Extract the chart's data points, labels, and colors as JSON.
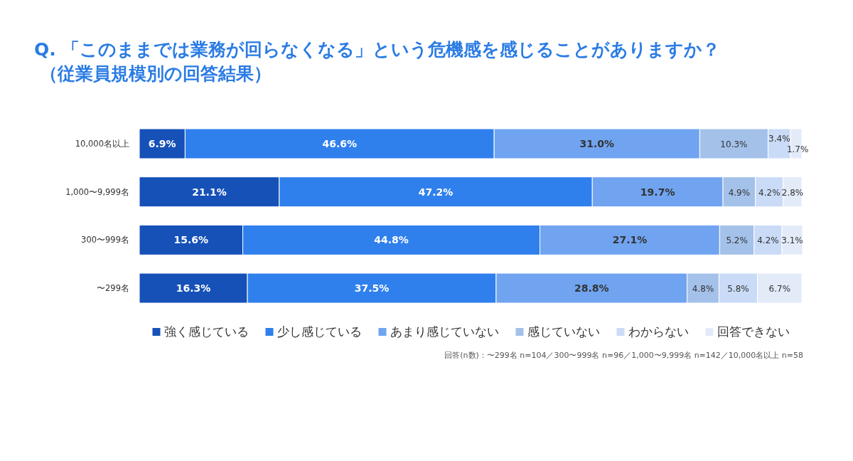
{
  "chart_data": {
    "type": "bar",
    "orientation": "horizontal",
    "stacked": true,
    "legend": "bottom",
    "title": "Q. 「このままでは業務が回らなくなる」という危機感を感じることがありますか？",
    "subtitle": "（従業員規模別の回答結果）",
    "categories": [
      "10,000名以上",
      "1,000〜9,999名",
      "300〜999名",
      "〜299名"
    ],
    "series": [
      {
        "name": "強く感じている",
        "color": "#1651b8",
        "values": [
          6.9,
          21.1,
          15.6,
          16.3
        ],
        "value_labels": [
          "6.9%",
          "21.1%",
          "15.6%",
          "16.3%"
        ]
      },
      {
        "name": "少し感じている",
        "color": "#2f80ed",
        "values": [
          46.6,
          47.2,
          44.8,
          37.5
        ],
        "value_labels": [
          "46.6%",
          "47.2%",
          "44.8%",
          "37.5%"
        ]
      },
      {
        "name": "あまり感じていない",
        "color": "#70a4f0",
        "values": [
          31.0,
          19.7,
          27.1,
          28.8
        ],
        "value_labels": [
          "31.0%",
          "19.7%",
          "27.1%",
          "28.8%"
        ]
      },
      {
        "name": "感じていない",
        "color": "#a4c1ea",
        "values": [
          10.3,
          4.9,
          5.2,
          4.8
        ],
        "value_labels": [
          "10.3%",
          "4.9%",
          "5.2%",
          "4.8%"
        ]
      },
      {
        "name": "わからない",
        "color": "#c9dbf6",
        "values": [
          3.4,
          4.2,
          4.2,
          5.8
        ],
        "value_labels": [
          "3.4%",
          "4.2%",
          "4.2%",
          "5.8%"
        ]
      },
      {
        "name": "回答できない",
        "color": "#e3ebf9",
        "values": [
          1.7,
          2.8,
          3.1,
          6.7
        ],
        "value_labels": [
          "1.7%",
          "2.8%",
          "3.1%",
          "6.7%"
        ]
      }
    ],
    "annotations": [
      "回答(n数)：〜299名 n=104／300〜999名 n=96／1,000〜9,999名 n=142／10,000名以上 n=58"
    ]
  }
}
